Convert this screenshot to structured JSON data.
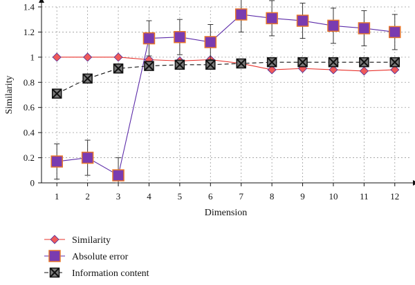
{
  "chart_data": {
    "type": "line",
    "title": "",
    "xlabel": "Dimension",
    "ylabel": "Similarity",
    "x": [
      1,
      2,
      3,
      4,
      5,
      6,
      7,
      8,
      9,
      10,
      11,
      12
    ],
    "xlim": [
      0.5,
      12.5
    ],
    "ylim": [
      0,
      1.4
    ],
    "yticks": [
      0,
      0.2,
      0.4,
      0.6,
      0.8,
      1,
      1.2,
      1.4
    ],
    "ytick_labels": [
      "0",
      "0.2",
      "0.4",
      "0.6",
      "0.8",
      "1",
      "1.2",
      "1.4"
    ],
    "xtick_labels": [
      "1",
      "2",
      "3",
      "4",
      "5",
      "6",
      "7",
      "8",
      "9",
      "10",
      "11",
      "12"
    ],
    "grid": true,
    "legend_position": "bottom-left",
    "series": [
      {
        "name": "Similarity",
        "marker": "diamond",
        "line_style": "solid",
        "line_color": "#e8302a",
        "marker_fill": "#ef5a5a",
        "marker_stroke": "#4a2a9a",
        "values": [
          1.0,
          1.0,
          1.0,
          0.98,
          0.97,
          0.98,
          0.95,
          0.9,
          0.91,
          0.9,
          0.89,
          0.9
        ]
      },
      {
        "name": "Absolute error",
        "marker": "square",
        "line_style": "solid",
        "line_color": "#5b2aa8",
        "marker_fill": "#7a3bb0",
        "marker_stroke": "#e8762a",
        "values": [
          0.17,
          0.2,
          0.06,
          1.15,
          1.16,
          1.12,
          1.34,
          1.31,
          1.29,
          1.25,
          1.23,
          1.2
        ],
        "error": [
          0.14,
          0.14,
          0.14,
          0.14,
          0.14,
          0.14,
          0.14,
          0.14,
          0.14,
          0.14,
          0.14,
          0.14
        ]
      },
      {
        "name": "Information content",
        "marker": "boxed-x",
        "line_style": "dashed",
        "line_color": "#111111",
        "marker_fill": "#7a7a7a",
        "marker_stroke": "#111111",
        "values": [
          0.71,
          0.83,
          0.91,
          0.93,
          0.94,
          0.94,
          0.95,
          0.96,
          0.96,
          0.96,
          0.96,
          0.96
        ]
      }
    ]
  }
}
